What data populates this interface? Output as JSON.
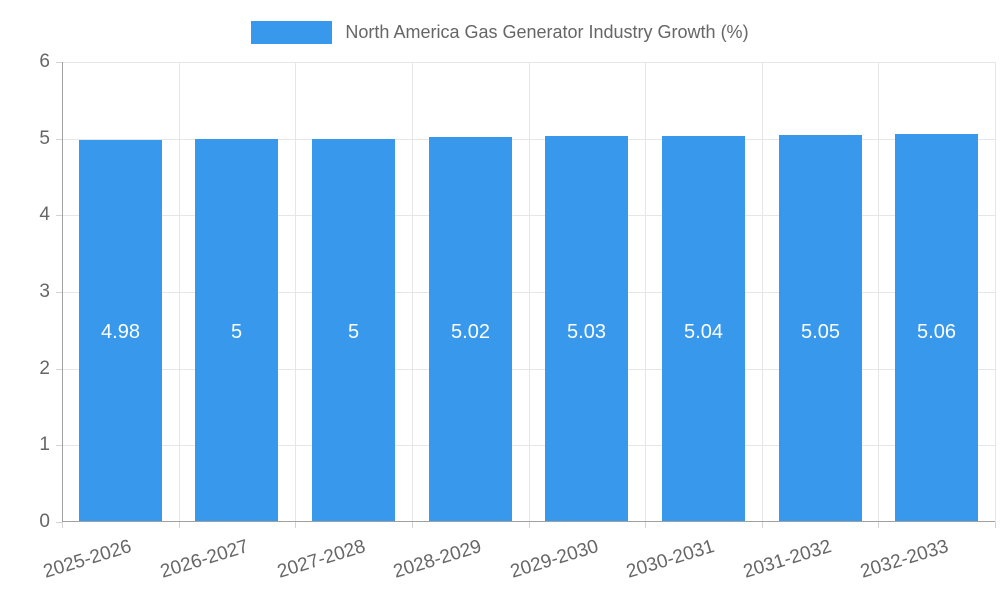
{
  "legend": {
    "label": "North America Gas Generator Industry Growth (%)"
  },
  "chart_data": {
    "type": "bar",
    "title": "",
    "xlabel": "",
    "ylabel": "",
    "categories": [
      "2025-2026",
      "2026-2027",
      "2027-2028",
      "2028-2029",
      "2029-2030",
      "2030-2031",
      "2031-2032",
      "2032-2033"
    ],
    "values": [
      4.98,
      5,
      5,
      5.02,
      5.03,
      5.04,
      5.05,
      5.06
    ],
    "value_labels": [
      "4.98",
      "5",
      "5",
      "5.02",
      "5.03",
      "5.04",
      "5.05",
      "5.06"
    ],
    "series": [
      {
        "name": "North America Gas Generator Industry Growth (%)",
        "values": [
          4.98,
          5,
          5,
          5.02,
          5.03,
          5.04,
          5.05,
          5.06
        ]
      }
    ],
    "ylim": [
      0,
      6
    ],
    "yticks": [
      0,
      1,
      2,
      3,
      4,
      5,
      6
    ],
    "grid": true,
    "legend_position": "top",
    "colors": {
      "bar": "#3898ec",
      "gridline": "#e6e6e6",
      "axis_line": "#a0a0a0",
      "tick_mark": "#d2d2d2",
      "tick_text": "#666666",
      "legend_text": "#666666",
      "bar_label_text": "#ffffff"
    }
  }
}
